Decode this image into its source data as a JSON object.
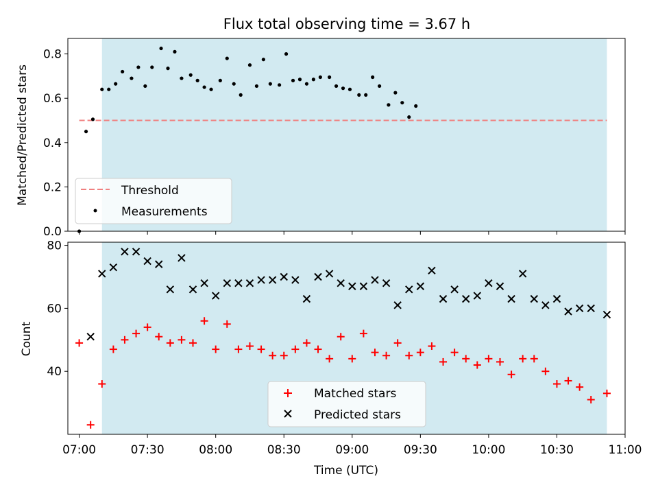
{
  "chart_data": [
    {
      "type": "scatter",
      "title": "Flux total observing time = 3.67 h",
      "xlabel": "",
      "ylabel": "Matched/Predicted stars",
      "ylim": [
        0,
        0.87
      ],
      "xlim": [
        "06:55",
        "11:00"
      ],
      "y_ticks": [
        "0.0",
        "0.2",
        "0.4",
        "0.6",
        "0.8"
      ],
      "shaded_interval": {
        "start": "07:10",
        "end": "10:52",
        "color": "#add8e6"
      },
      "legend_position": "lower left",
      "threshold": {
        "name": "Threshold",
        "value": 0.5,
        "x_start": "07:00",
        "x_end": "10:52",
        "color": "#f08080"
      },
      "series": [
        {
          "name": "Measurements",
          "color": "#000000",
          "marker": "dot",
          "points": [
            [
              "07:00",
              0.0
            ],
            [
              "07:03",
              0.45
            ],
            [
              "07:06",
              0.505
            ],
            [
              "07:10",
              0.64
            ],
            [
              "07:13",
              0.64
            ],
            [
              "07:16",
              0.665
            ],
            [
              "07:19",
              0.72
            ],
            [
              "07:23",
              0.69
            ],
            [
              "07:26",
              0.74
            ],
            [
              "07:29",
              0.655
            ],
            [
              "07:32",
              0.74
            ],
            [
              "07:36",
              0.825
            ],
            [
              "07:39",
              0.735
            ],
            [
              "07:42",
              0.81
            ],
            [
              "07:45",
              0.69
            ],
            [
              "07:49",
              0.705
            ],
            [
              "07:52",
              0.68
            ],
            [
              "07:55",
              0.65
            ],
            [
              "07:58",
              0.64
            ],
            [
              "08:02",
              0.68
            ],
            [
              "08:05",
              0.78
            ],
            [
              "08:08",
              0.665
            ],
            [
              "08:11",
              0.615
            ],
            [
              "08:15",
              0.75
            ],
            [
              "08:18",
              0.655
            ],
            [
              "08:21",
              0.775
            ],
            [
              "08:24",
              0.665
            ],
            [
              "08:28",
              0.66
            ],
            [
              "08:31",
              0.8
            ],
            [
              "08:34",
              0.68
            ],
            [
              "08:37",
              0.685
            ],
            [
              "08:40",
              0.665
            ],
            [
              "08:43",
              0.685
            ],
            [
              "08:46",
              0.695
            ],
            [
              "08:50",
              0.695
            ],
            [
              "08:53",
              0.655
            ],
            [
              "08:56",
              0.645
            ],
            [
              "08:59",
              0.64
            ],
            [
              "09:03",
              0.615
            ],
            [
              "09:06",
              0.615
            ],
            [
              "09:09",
              0.695
            ],
            [
              "09:12",
              0.655
            ],
            [
              "09:16",
              0.57
            ],
            [
              "09:19",
              0.625
            ],
            [
              "09:22",
              0.58
            ],
            [
              "09:25",
              0.515
            ],
            [
              "09:28",
              0.565
            ]
          ]
        }
      ]
    },
    {
      "type": "scatter",
      "title": "",
      "xlabel": "Time (UTC)",
      "ylabel": "Count",
      "ylim": [
        20,
        81
      ],
      "xlim": [
        "06:55",
        "11:00"
      ],
      "x_ticks": [
        "07:00",
        "07:30",
        "08:00",
        "08:30",
        "09:00",
        "09:30",
        "10:00",
        "10:30",
        "11:00"
      ],
      "y_ticks": [
        "40",
        "60",
        "80"
      ],
      "shaded_interval": {
        "start": "07:10",
        "end": "10:52",
        "color": "#add8e6"
      },
      "legend_position": "lower center",
      "series": [
        {
          "name": "Matched stars",
          "color": "#ff0000",
          "marker": "plus",
          "points": [
            [
              "07:00",
              49
            ],
            [
              "07:05",
              23
            ],
            [
              "07:10",
              36
            ],
            [
              "07:15",
              47
            ],
            [
              "07:20",
              50
            ],
            [
              "07:25",
              52
            ],
            [
              "07:30",
              54
            ],
            [
              "07:35",
              51
            ],
            [
              "07:40",
              49
            ],
            [
              "07:45",
              50
            ],
            [
              "07:50",
              49
            ],
            [
              "07:55",
              56
            ],
            [
              "08:00",
              47
            ],
            [
              "08:05",
              55
            ],
            [
              "08:10",
              47
            ],
            [
              "08:15",
              48
            ],
            [
              "08:20",
              47
            ],
            [
              "08:25",
              45
            ],
            [
              "08:30",
              45
            ],
            [
              "08:35",
              47
            ],
            [
              "08:40",
              49
            ],
            [
              "08:45",
              47
            ],
            [
              "08:50",
              44
            ],
            [
              "08:55",
              51
            ],
            [
              "09:00",
              44
            ],
            [
              "09:05",
              52
            ],
            [
              "09:10",
              46
            ],
            [
              "09:15",
              45
            ],
            [
              "09:20",
              49
            ],
            [
              "09:25",
              45
            ],
            [
              "09:30",
              46
            ],
            [
              "09:35",
              48
            ],
            [
              "09:40",
              43
            ],
            [
              "09:45",
              46
            ],
            [
              "09:50",
              44
            ],
            [
              "09:55",
              42
            ],
            [
              "10:00",
              44
            ],
            [
              "10:05",
              43
            ],
            [
              "10:10",
              39
            ],
            [
              "10:15",
              44
            ],
            [
              "10:20",
              44
            ],
            [
              "10:25",
              40
            ],
            [
              "10:30",
              36
            ],
            [
              "10:35",
              37
            ],
            [
              "10:40",
              35
            ],
            [
              "10:45",
              31
            ],
            [
              "10:52",
              33
            ]
          ]
        },
        {
          "name": "Predicted stars",
          "color": "#000000",
          "marker": "x",
          "points": [
            [
              "07:05",
              51
            ],
            [
              "07:10",
              71
            ],
            [
              "07:15",
              73
            ],
            [
              "07:20",
              78
            ],
            [
              "07:25",
              78
            ],
            [
              "07:30",
              75
            ],
            [
              "07:35",
              74
            ],
            [
              "07:40",
              66
            ],
            [
              "07:45",
              76
            ],
            [
              "07:50",
              66
            ],
            [
              "07:55",
              68
            ],
            [
              "08:00",
              64
            ],
            [
              "08:05",
              68
            ],
            [
              "08:10",
              68
            ],
            [
              "08:15",
              68
            ],
            [
              "08:20",
              69
            ],
            [
              "08:25",
              69
            ],
            [
              "08:30",
              70
            ],
            [
              "08:35",
              69
            ],
            [
              "08:40",
              63
            ],
            [
              "08:45",
              70
            ],
            [
              "08:50",
              71
            ],
            [
              "08:55",
              68
            ],
            [
              "09:00",
              67
            ],
            [
              "09:05",
              67
            ],
            [
              "09:10",
              69
            ],
            [
              "09:15",
              68
            ],
            [
              "09:20",
              61
            ],
            [
              "09:25",
              66
            ],
            [
              "09:30",
              67
            ],
            [
              "09:35",
              72
            ],
            [
              "09:40",
              63
            ],
            [
              "09:45",
              66
            ],
            [
              "09:50",
              63
            ],
            [
              "09:55",
              64
            ],
            [
              "10:00",
              68
            ],
            [
              "10:05",
              67
            ],
            [
              "10:10",
              63
            ],
            [
              "10:15",
              71
            ],
            [
              "10:20",
              63
            ],
            [
              "10:25",
              61
            ],
            [
              "10:30",
              63
            ],
            [
              "10:35",
              59
            ],
            [
              "10:40",
              60
            ],
            [
              "10:45",
              60
            ],
            [
              "10:52",
              58
            ]
          ]
        }
      ]
    }
  ]
}
